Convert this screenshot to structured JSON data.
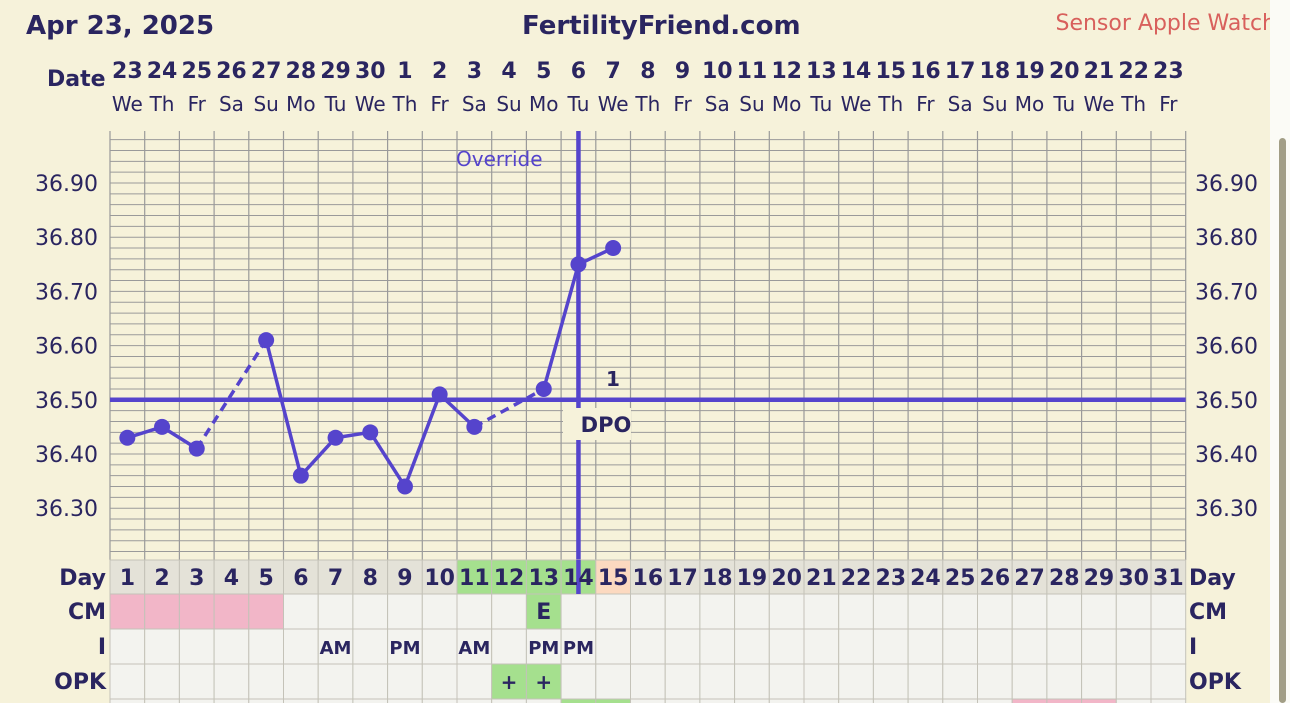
{
  "header": {
    "date": "Apr 23, 2025",
    "site": "FertilityFriend.com",
    "sensor": "Sensor Apple Watch"
  },
  "row_labels": {
    "date": "Date",
    "day": "Day",
    "cm": "CM",
    "intercourse": "I",
    "opk": "OPK"
  },
  "override_label": "Override",
  "dpo_label": "DPO",
  "dpo_number": "1",
  "colors": {
    "line": "#5544cc",
    "grid": "#9a9a9a",
    "chart_bg": "#f6f2da",
    "cell_bg": "#f3f3ef",
    "pink": "#f2b6c8",
    "green": "#a5e08e",
    "peach": "#fcd9c0",
    "sensor_text": "#d8605c",
    "text": "#2a2560"
  },
  "chart_data": {
    "type": "line",
    "title": "FertilityFriend.com",
    "dates": [
      "23",
      "24",
      "25",
      "26",
      "27",
      "28",
      "29",
      "30",
      "1",
      "2",
      "3",
      "4",
      "5",
      "6",
      "7",
      "8",
      "9",
      "10",
      "11",
      "12",
      "13",
      "14",
      "15",
      "16",
      "17",
      "18",
      "19",
      "20",
      "21",
      "22",
      "23"
    ],
    "weekdays": [
      "We",
      "Th",
      "Fr",
      "Sa",
      "Su",
      "Mo",
      "Tu",
      "We",
      "Th",
      "Fr",
      "Sa",
      "Su",
      "Mo",
      "Tu",
      "We",
      "Th",
      "Fr",
      "Sa",
      "Su",
      "Mo",
      "Tu",
      "We",
      "Th",
      "Fr",
      "Sa",
      "Su",
      "Mo",
      "Tu",
      "We",
      "Th",
      "Fr"
    ],
    "cycle_days": [
      "1",
      "2",
      "3",
      "4",
      "5",
      "6",
      "7",
      "8",
      "9",
      "10",
      "11",
      "12",
      "13",
      "14",
      "15",
      "16",
      "17",
      "18",
      "19",
      "20",
      "21",
      "22",
      "23",
      "24",
      "25",
      "26",
      "27",
      "28",
      "29",
      "30",
      "31"
    ],
    "temperatures": [
      36.43,
      36.45,
      36.41,
      null,
      36.61,
      36.36,
      36.43,
      36.44,
      36.34,
      36.51,
      36.45,
      null,
      36.52,
      36.75,
      36.78,
      null,
      null,
      null,
      null,
      null,
      null,
      null,
      null,
      null,
      null,
      null,
      null,
      null,
      null,
      null,
      null
    ],
    "dashed_segments": [
      [
        3,
        5
      ],
      [
        11,
        13
      ]
    ],
    "y_ticks": [
      "36.90",
      "36.80",
      "36.70",
      "36.60",
      "36.50",
      "36.40",
      "36.30"
    ],
    "ylim": [
      36.2,
      37.0
    ],
    "coverline": 36.5,
    "ovulation_day": 14,
    "cm": [
      "",
      "",
      "",
      "",
      "",
      "",
      "",
      "",
      "",
      "",
      "",
      "",
      "E",
      "",
      "",
      "",
      "",
      "",
      "",
      "",
      "",
      "",
      "",
      "",
      "",
      "",
      "",
      "",
      "",
      "",
      ""
    ],
    "cm_pink_days": [
      1,
      2,
      3,
      4,
      5
    ],
    "cm_green_days": [
      13
    ],
    "intercourse": [
      "",
      "",
      "",
      "",
      "",
      "",
      "AM",
      "",
      "PM",
      "",
      "AM",
      "",
      "PM",
      "PM",
      "",
      "",
      "",
      "",
      "",
      "",
      "",
      "",
      "",
      "",
      "",
      "",
      "",
      "",
      "",
      "",
      ""
    ],
    "opk": [
      "",
      "",
      "",
      "",
      "",
      "",
      "",
      "",
      "",
      "",
      "",
      "+",
      "+",
      "",
      "",
      "",
      "",
      "",
      "",
      "",
      "",
      "",
      "",
      "",
      "",
      "",
      "",
      "",
      "",
      "",
      ""
    ],
    "opk_green_days": [
      12,
      13
    ],
    "day_green": [
      11,
      12,
      13,
      14
    ],
    "day_peach": [
      15
    ],
    "partial_row_green_days": [
      14,
      15
    ],
    "partial_row_pink_days": [
      27,
      28,
      29
    ]
  }
}
